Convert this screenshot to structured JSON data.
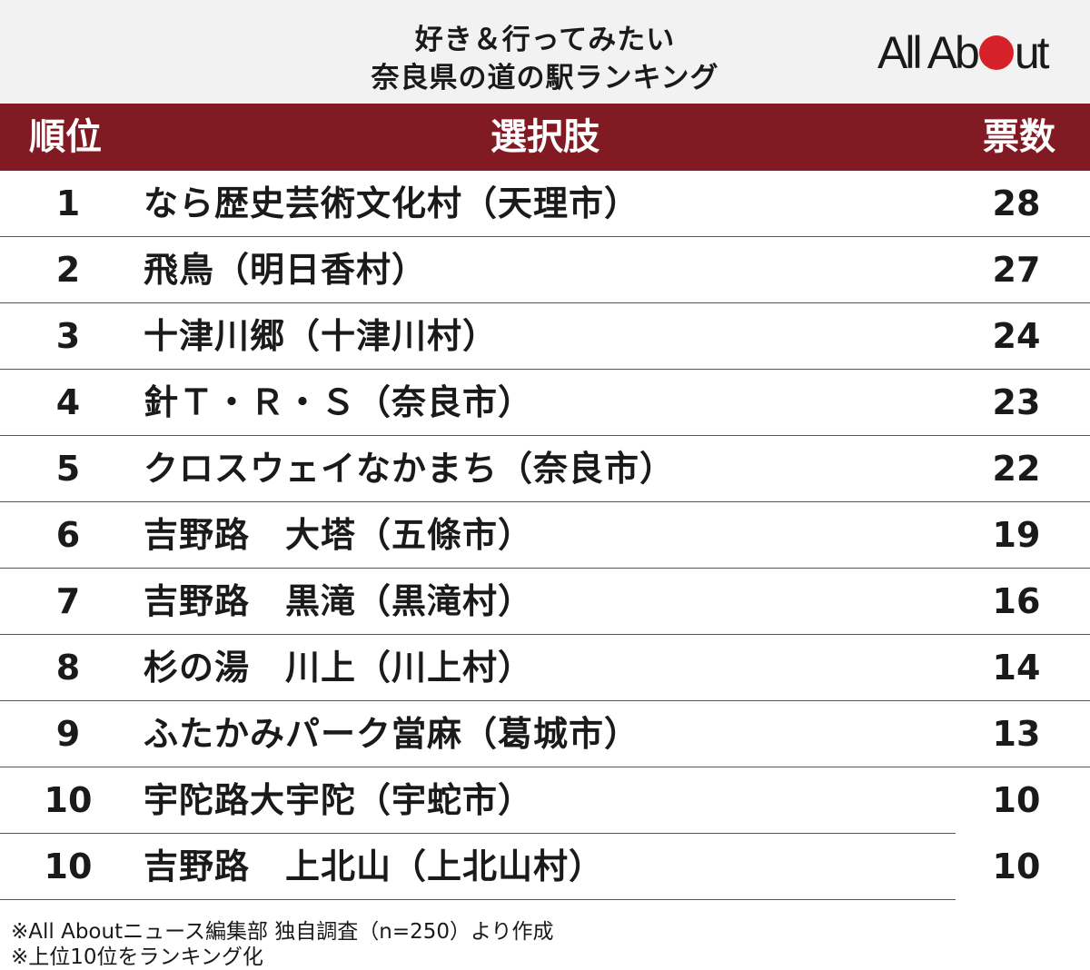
{
  "header": {
    "title_line1": "好き＆行ってみたい",
    "title_line2": "奈良県の道の駅ランキング",
    "logo_part1": "All Ab",
    "logo_part2": "ut"
  },
  "table": {
    "columns": {
      "rank": "順位",
      "choice": "選択肢",
      "votes": "票数"
    },
    "rows": [
      {
        "rank": "1",
        "name": "なら歴史芸術文化村（天理市）",
        "votes": "28"
      },
      {
        "rank": "2",
        "name": "飛鳥（明日香村）",
        "votes": "27"
      },
      {
        "rank": "3",
        "name": "十津川郷（十津川村）",
        "votes": "24"
      },
      {
        "rank": "4",
        "name": "針Ｔ・Ｒ・Ｓ（奈良市）",
        "votes": "23"
      },
      {
        "rank": "5",
        "name": "クロスウェイなかまち（奈良市）",
        "votes": "22"
      },
      {
        "rank": "6",
        "name": "吉野路　大塔（五條市）",
        "votes": "19"
      },
      {
        "rank": "7",
        "name": "吉野路　黒滝（黒滝村）",
        "votes": "16"
      },
      {
        "rank": "8",
        "name": "杉の湯　川上（川上村）",
        "votes": "14"
      },
      {
        "rank": "9",
        "name": "ふたかみパーク當麻（葛城市）",
        "votes": "13"
      },
      {
        "rank": "10",
        "name": "宇陀路大宇陀（宇蛇市）",
        "votes": "10"
      },
      {
        "rank": "10",
        "name": "吉野路　上北山（上北山村）",
        "votes": "10"
      }
    ]
  },
  "footnotes": {
    "line1": "※All Aboutニュース編集部 独自調査（n=250）より作成",
    "line2": "※上位10位をランキング化"
  },
  "colors": {
    "header_bg": "#f2f2f2",
    "table_header_bg": "#821a24",
    "logo_dot": "#d6202a"
  }
}
